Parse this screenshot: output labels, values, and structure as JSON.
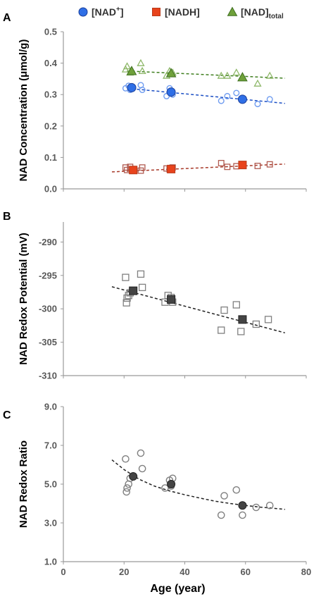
{
  "chart_data": [
    {
      "panel": "A",
      "type": "scatter",
      "ylabel": "NAD Concentration (μmol/g)",
      "xlabel": "",
      "xlim": [
        0,
        80
      ],
      "ylim": [
        0.0,
        0.5
      ],
      "yticks": [
        "0.0",
        "0.1",
        "0.2",
        "0.3",
        "0.4",
        "0.5"
      ],
      "legend_position": "top",
      "legend": [
        {
          "main": "[NAD",
          "sup": "+",
          "close": "]",
          "sub": ""
        },
        {
          "main": "[NADH]",
          "sup": "",
          "close": "",
          "sub": ""
        },
        {
          "main": "[NAD]",
          "sup": "",
          "close": "",
          "sub": "total"
        }
      ],
      "series": [
        {
          "key": "nad_plus",
          "color": "#2f6fe6",
          "marker": "circle",
          "points": [
            [
              20.5,
              0.32
            ],
            [
              21.5,
              0.328
            ],
            [
              22.0,
              0.315
            ],
            [
              25.5,
              0.33
            ],
            [
              26.0,
              0.315
            ],
            [
              34.0,
              0.295
            ],
            [
              35.0,
              0.32
            ],
            [
              36.0,
              0.3
            ],
            [
              52.0,
              0.28
            ],
            [
              54.0,
              0.295
            ],
            [
              57.0,
              0.305
            ],
            [
              59.0,
              0.285
            ],
            [
              64.0,
              0.27
            ],
            [
              68.0,
              0.285
            ]
          ],
          "means": [
            [
              22.5,
              0.322
            ],
            [
              35.5,
              0.308
            ],
            [
              59.0,
              0.285
            ]
          ],
          "trend": [
            [
              21,
              0.32
            ],
            [
              73,
              0.272
            ]
          ]
        },
        {
          "key": "nadh",
          "color": "#e8431c",
          "marker": "square",
          "points": [
            [
              20.5,
              0.068
            ],
            [
              21.0,
              0.06
            ],
            [
              22.0,
              0.07
            ],
            [
              25.5,
              0.058
            ],
            [
              26.0,
              0.068
            ],
            [
              34.0,
              0.065
            ],
            [
              35.0,
              0.062
            ],
            [
              36.0,
              0.068
            ],
            [
              52.0,
              0.082
            ],
            [
              54.0,
              0.07
            ],
            [
              57.0,
              0.072
            ],
            [
              59.0,
              0.078
            ],
            [
              64.0,
              0.073
            ],
            [
              68.0,
              0.078
            ]
          ],
          "means": [
            [
              23.0,
              0.06
            ],
            [
              35.5,
              0.063
            ],
            [
              59.0,
              0.076
            ]
          ],
          "trend": [
            [
              16,
              0.054
            ],
            [
              73,
              0.079
            ]
          ]
        },
        {
          "key": "nad_total",
          "color": "#6fa13a",
          "marker": "triangle",
          "points": [
            [
              20.5,
              0.38
            ],
            [
              21.0,
              0.39
            ],
            [
              22.0,
              0.37
            ],
            [
              25.5,
              0.4
            ],
            [
              26.0,
              0.375
            ],
            [
              34.0,
              0.36
            ],
            [
              35.0,
              0.375
            ],
            [
              36.0,
              0.37
            ],
            [
              52.0,
              0.36
            ],
            [
              54.0,
              0.36
            ],
            [
              57.0,
              0.37
            ],
            [
              59.0,
              0.355
            ],
            [
              64.0,
              0.335
            ],
            [
              68.0,
              0.36
            ]
          ],
          "means": [
            [
              22.5,
              0.375
            ],
            [
              35.5,
              0.368
            ],
            [
              59.0,
              0.355
            ]
          ],
          "trend": [
            [
              21,
              0.375
            ],
            [
              73,
              0.352
            ]
          ]
        }
      ]
    },
    {
      "panel": "B",
      "type": "scatter",
      "ylabel": "NAD Redox Potential (mV)",
      "xlabel": "",
      "xlim": [
        0,
        80
      ],
      "ylim": [
        -310,
        -287
      ],
      "yticks": [
        "-290",
        "-295",
        "-300",
        "-305",
        "-310"
      ],
      "series": [
        {
          "key": "redox_potential",
          "color": "#666666",
          "marker": "square-open",
          "points": [
            [
              20.5,
              -295.3
            ],
            [
              20.8,
              -299.1
            ],
            [
              21.0,
              -298.4
            ],
            [
              21.5,
              -298.0
            ],
            [
              22.0,
              -297.6
            ],
            [
              25.5,
              -294.8
            ],
            [
              26.0,
              -296.8
            ],
            [
              33.5,
              -299.0
            ],
            [
              34.5,
              -298.0
            ],
            [
              35.5,
              -298.3
            ],
            [
              36.0,
              -299.0
            ],
            [
              52.0,
              -303.2
            ],
            [
              53.0,
              -300.2
            ],
            [
              57.0,
              -299.4
            ],
            [
              58.5,
              -303.4
            ],
            [
              63.5,
              -302.3
            ],
            [
              67.5,
              -301.6
            ]
          ],
          "means": [
            [
              23.0,
              -297.3
            ],
            [
              35.5,
              -298.6
            ],
            [
              59.0,
              -301.6
            ]
          ],
          "trend": [
            [
              16,
              -296.7
            ],
            [
              73,
              -303.6
            ]
          ]
        }
      ]
    },
    {
      "panel": "C",
      "type": "scatter",
      "ylabel": "NAD Redox Ratio",
      "xlabel": "Age (year)",
      "xlim": [
        0,
        80
      ],
      "ylim": [
        1.0,
        9.0
      ],
      "yticks": [
        "1.0",
        "3.0",
        "5.0",
        "7.0",
        "9.0"
      ],
      "xticks": [
        "0",
        "20",
        "40",
        "60",
        "80"
      ],
      "series": [
        {
          "key": "redox_ratio",
          "color": "#666666",
          "marker": "circle-open",
          "points": [
            [
              20.5,
              6.3
            ],
            [
              20.8,
              4.6
            ],
            [
              21.0,
              4.8
            ],
            [
              21.5,
              5.0
            ],
            [
              22.0,
              5.3
            ],
            [
              25.5,
              6.6
            ],
            [
              26.0,
              5.8
            ],
            [
              33.5,
              4.8
            ],
            [
              35.0,
              5.2
            ],
            [
              35.5,
              4.9
            ],
            [
              36.0,
              5.3
            ],
            [
              52.0,
              3.4
            ],
            [
              53.0,
              4.4
            ],
            [
              57.0,
              4.7
            ],
            [
              59.0,
              3.4
            ],
            [
              63.5,
              3.8
            ],
            [
              68.0,
              3.9
            ]
          ],
          "means": [
            [
              23.0,
              5.4
            ],
            [
              35.5,
              5.0
            ],
            [
              59.0,
              3.9
            ]
          ],
          "trend": [
            [
              16,
              6.25
            ],
            [
              20,
              5.75
            ],
            [
              25,
              5.25
            ],
            [
              30,
              4.9
            ],
            [
              35,
              4.65
            ],
            [
              40,
              4.45
            ],
            [
              45,
              4.28
            ],
            [
              50,
              4.12
            ],
            [
              55,
              4.0
            ],
            [
              60,
              3.9
            ],
            [
              65,
              3.81
            ],
            [
              70,
              3.74
            ],
            [
              73,
              3.7
            ]
          ]
        }
      ]
    }
  ]
}
